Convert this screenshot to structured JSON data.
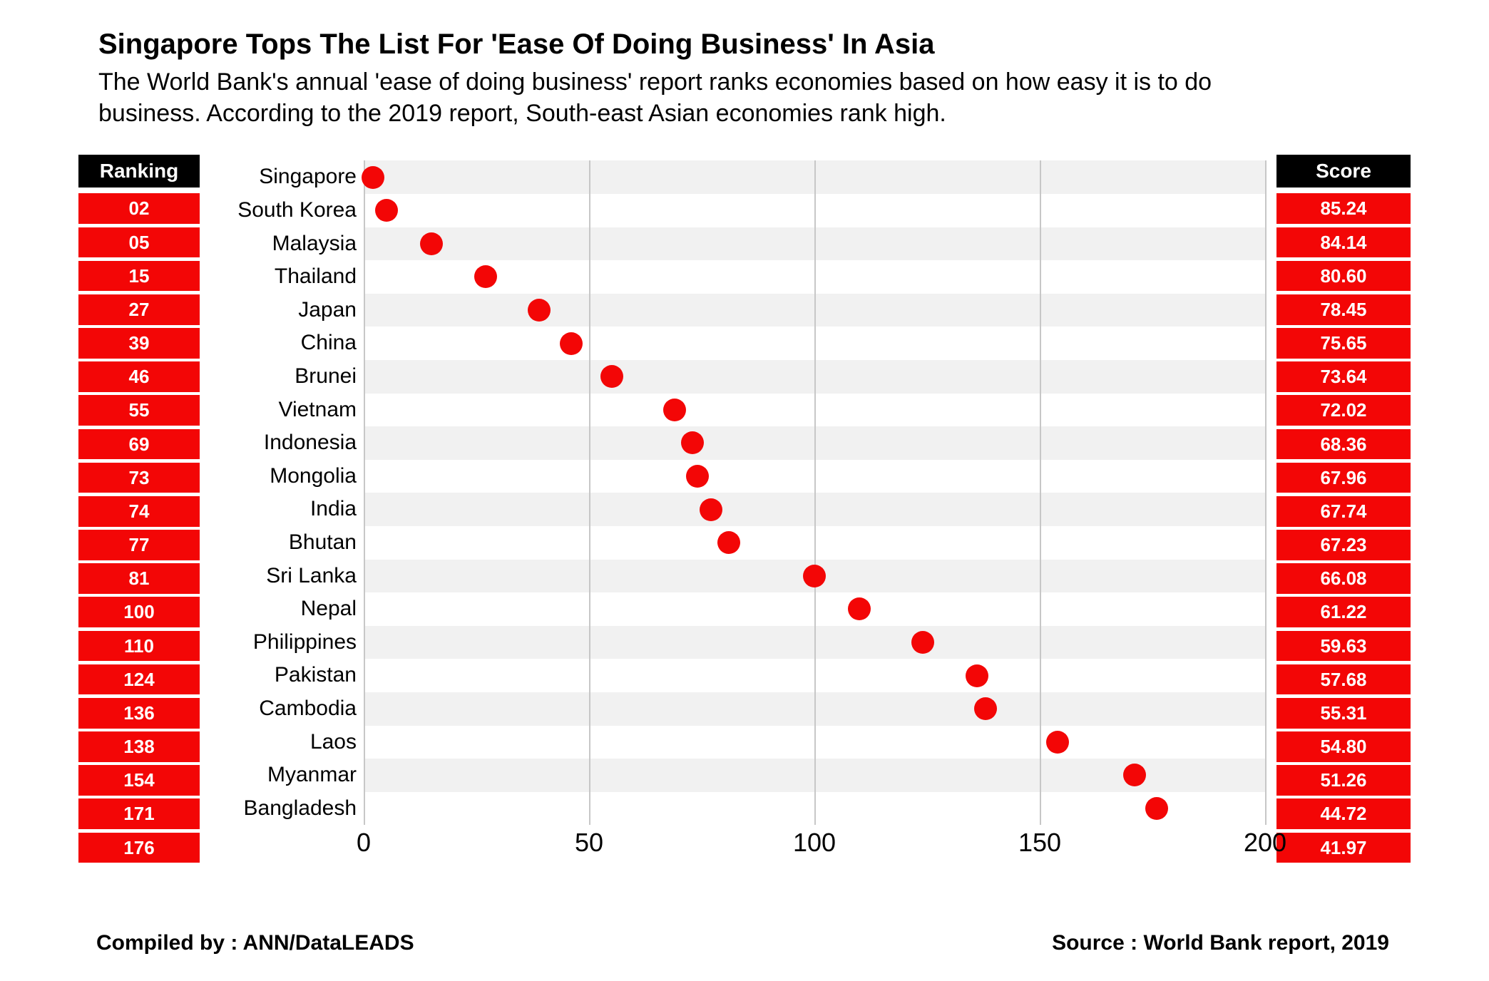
{
  "title": "Singapore Tops The List For 'Ease Of Doing Business' In Asia",
  "subtitle": "The World Bank's annual 'ease of doing business' report ranks economies based on how easy it is to do business.  According to the 2019 report, South-east Asian economies rank high.",
  "ranking_header": "Ranking",
  "score_header": "Score",
  "footer_left": "Compiled by : ANN/DataLEADS",
  "footer_right": "Source : World Bank report, 2019",
  "chart": {
    "type": "scatter",
    "xlim": [
      0,
      200
    ],
    "xticks": [
      0,
      50,
      100,
      150,
      200
    ],
    "band_color_even": "#f1f1f1",
    "band_color_odd": "#ffffff",
    "grid_color": "#c7c7c7",
    "marker_color": "#f30606",
    "marker_size": 32,
    "label_fontsize": 30,
    "tick_fontsize": 36,
    "cell_bg": "#f30606",
    "header_bg": "#000000",
    "text_color": "#ffffff",
    "rows": [
      {
        "country": "Singapore",
        "rank": "02",
        "score": "85.24",
        "x": 2
      },
      {
        "country": "South Korea",
        "rank": "05",
        "score": "84.14",
        "x": 5
      },
      {
        "country": "Malaysia",
        "rank": "15",
        "score": "80.60",
        "x": 15
      },
      {
        "country": "Thailand",
        "rank": "27",
        "score": "78.45",
        "x": 27
      },
      {
        "country": "Japan",
        "rank": "39",
        "score": "75.65",
        "x": 39
      },
      {
        "country": "China",
        "rank": "46",
        "score": "73.64",
        "x": 46
      },
      {
        "country": "Brunei",
        "rank": "55",
        "score": "72.02",
        "x": 55
      },
      {
        "country": "Vietnam",
        "rank": "69",
        "score": "68.36",
        "x": 69
      },
      {
        "country": "Indonesia",
        "rank": "73",
        "score": "67.96",
        "x": 73
      },
      {
        "country": "Mongolia",
        "rank": "74",
        "score": "67.74",
        "x": 74
      },
      {
        "country": "India",
        "rank": "77",
        "score": "67.23",
        "x": 77
      },
      {
        "country": "Bhutan",
        "rank": "81",
        "score": "66.08",
        "x": 81
      },
      {
        "country": "Sri Lanka",
        "rank": "100",
        "score": "61.22",
        "x": 100
      },
      {
        "country": "Nepal",
        "rank": "110",
        "score": "59.63",
        "x": 110
      },
      {
        "country": "Philippines",
        "rank": "124",
        "score": "57.68",
        "x": 124
      },
      {
        "country": "Pakistan",
        "rank": "136",
        "score": "55.31",
        "x": 136
      },
      {
        "country": "Cambodia",
        "rank": "138",
        "score": "54.80",
        "x": 138
      },
      {
        "country": "Laos",
        "rank": "154",
        "score": "51.26",
        "x": 154
      },
      {
        "country": "Myanmar",
        "rank": "171",
        "score": "44.72",
        "x": 171
      },
      {
        "country": "Bangladesh",
        "rank": "176",
        "score": "41.97",
        "x": 176
      }
    ]
  }
}
